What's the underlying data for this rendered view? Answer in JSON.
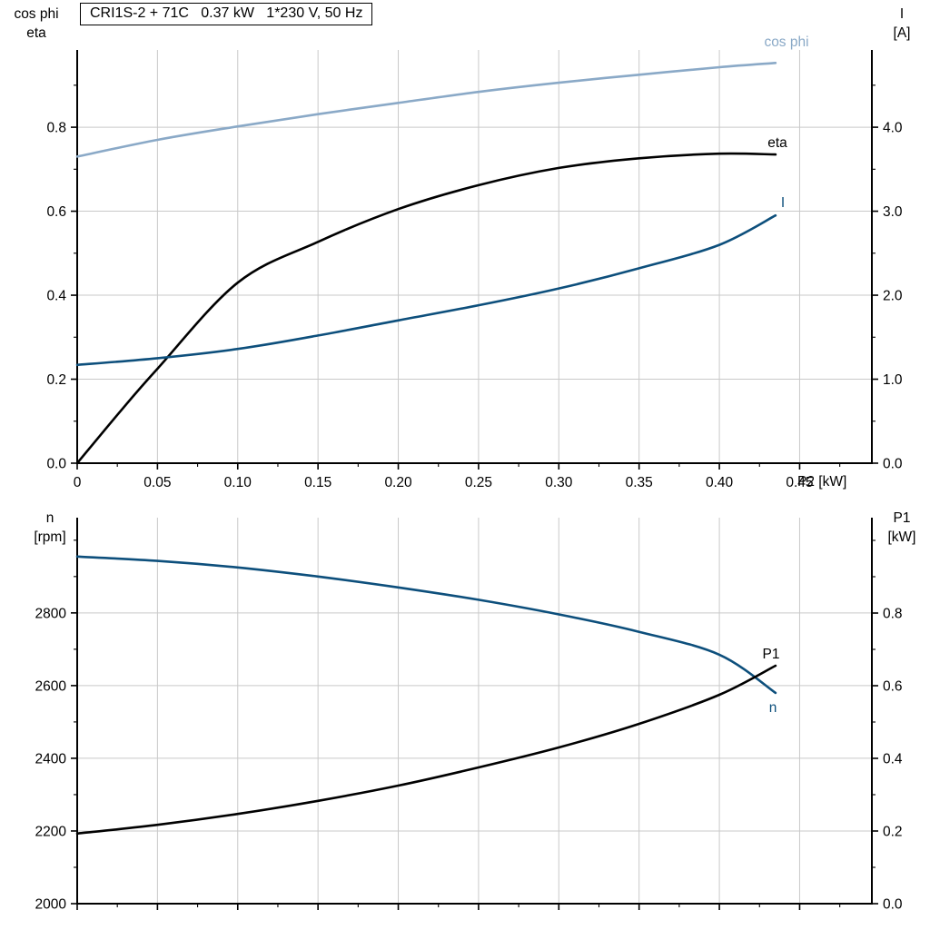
{
  "title_box": "CRI1S-2 + 71C   0.37 kW   1*230 V, 50 Hz",
  "labels": {
    "top_left_line1": "cos phi",
    "top_left_line2": "eta",
    "top_right_line1": "I",
    "top_right_line2": "[A]",
    "x_axis": "P2 [kW]",
    "bottom_left_line1": "n",
    "bottom_left_line2": "[rpm]",
    "bottom_right_line1": "P1",
    "bottom_right_line2": "[kW]"
  },
  "colors": {
    "light_blue": "#8AA9C7",
    "dark_blue": "#0D4F7C",
    "black": "#000000",
    "grid": "#C9C9C9",
    "axis": "#000000"
  },
  "chart_data": [
    {
      "type": "line",
      "title": "CRI1S-2 + 71C 0.37 kW 1*230 V, 50 Hz",
      "xlabel": "P2 [kW]",
      "x_range": [
        0,
        0.495
      ],
      "x_ticks": [
        0,
        0.05,
        0.1,
        0.15,
        0.2,
        0.25,
        0.3,
        0.35,
        0.4,
        0.45
      ],
      "x_tick_labels": [
        "0",
        "0.05",
        "0.10",
        "0.15",
        "0.20",
        "0.25",
        "0.30",
        "0.35",
        "0.40",
        "0.45"
      ],
      "grid": true,
      "axes": {
        "left": {
          "label": "cos phi / eta",
          "range": [
            0,
            0.984
          ],
          "ticks": [
            0,
            0.2,
            0.4,
            0.6,
            0.8
          ],
          "tick_labels": [
            "0.0",
            "0.2",
            "0.4",
            "0.6",
            "0.8"
          ]
        },
        "right": {
          "label": "I [A]",
          "range": [
            0,
            4.92
          ],
          "ticks": [
            0,
            1.0,
            2.0,
            3.0,
            4.0
          ],
          "tick_labels": [
            "0.0",
            "1.0",
            "2.0",
            "3.0",
            "4.0"
          ]
        }
      },
      "series": [
        {
          "name": "cos phi",
          "axis": "left",
          "color": "light_blue",
          "x": [
            0,
            0.05,
            0.1,
            0.15,
            0.2,
            0.25,
            0.3,
            0.35,
            0.4,
            0.435
          ],
          "y": [
            0.73,
            0.77,
            0.802,
            0.831,
            0.858,
            0.884,
            0.906,
            0.925,
            0.943,
            0.953
          ]
        },
        {
          "name": "eta",
          "axis": "left",
          "color": "black",
          "x": [
            0,
            0.025,
            0.05,
            0.1,
            0.15,
            0.2,
            0.25,
            0.3,
            0.35,
            0.4,
            0.435
          ],
          "y": [
            0,
            0.115,
            0.225,
            0.43,
            0.527,
            0.605,
            0.662,
            0.703,
            0.726,
            0.737,
            0.735
          ]
        },
        {
          "name": "I",
          "axis": "right",
          "color": "dark_blue",
          "x": [
            0,
            0.05,
            0.1,
            0.15,
            0.2,
            0.25,
            0.3,
            0.35,
            0.4,
            0.435
          ],
          "y": [
            1.17,
            1.25,
            1.36,
            1.52,
            1.7,
            1.88,
            2.08,
            2.32,
            2.6,
            2.95
          ]
        }
      ]
    },
    {
      "type": "line",
      "title": "",
      "xlabel": "",
      "x_range": [
        0,
        0.495
      ],
      "x_ticks": [
        0,
        0.05,
        0.1,
        0.15,
        0.2,
        0.25,
        0.3,
        0.35,
        0.4,
        0.45
      ],
      "x_tick_labels": [],
      "grid": true,
      "axes": {
        "left": {
          "label": "n [rpm]",
          "range": [
            2000,
            3062
          ],
          "ticks": [
            2000,
            2200,
            2400,
            2600,
            2800
          ],
          "tick_labels": [
            "2000",
            "2200",
            "2400",
            "2600",
            "2800"
          ]
        },
        "right": {
          "label": "P1 [kW]",
          "range": [
            0,
            1.0625
          ],
          "ticks": [
            0,
            0.2,
            0.4,
            0.6,
            0.8
          ],
          "tick_labels": [
            "0.0",
            "0.2",
            "0.4",
            "0.6",
            "0.8"
          ]
        }
      },
      "series": [
        {
          "name": "n",
          "axis": "left",
          "color": "dark_blue",
          "x": [
            0,
            0.05,
            0.1,
            0.15,
            0.2,
            0.25,
            0.3,
            0.35,
            0.4,
            0.435
          ],
          "y": [
            2955,
            2943,
            2925,
            2900,
            2870,
            2836,
            2796,
            2748,
            2685,
            2580
          ]
        },
        {
          "name": "P1",
          "axis": "right",
          "color": "black",
          "x": [
            0,
            0.05,
            0.1,
            0.15,
            0.2,
            0.25,
            0.3,
            0.35,
            0.4,
            0.435
          ],
          "y": [
            0.193,
            0.217,
            0.247,
            0.283,
            0.325,
            0.375,
            0.43,
            0.495,
            0.575,
            0.655
          ]
        }
      ]
    }
  ]
}
